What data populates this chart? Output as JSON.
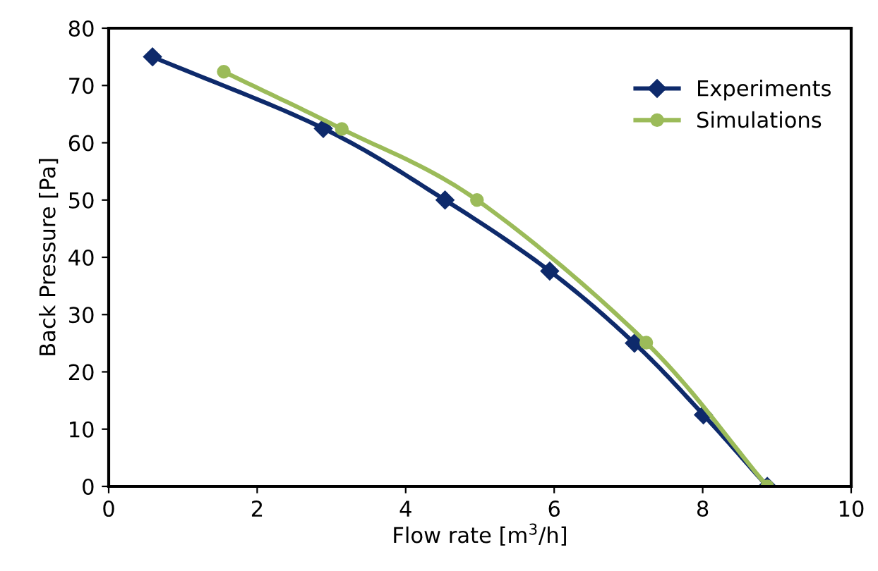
{
  "chart_data": {
    "type": "line",
    "xlabel": "Flow rate [m$^{3}$/h]",
    "ylabel": "Back Pressure [Pa]",
    "xlim": [
      0,
      10
    ],
    "xticks": [
      0,
      2,
      4,
      6,
      8,
      10
    ],
    "ylim": [
      0,
      80
    ],
    "yticks": [
      0,
      10,
      20,
      30,
      40,
      50,
      60,
      70,
      80
    ],
    "grid": false,
    "legend": "top right",
    "series": [
      {
        "name": "Experiments",
        "color": "#0e2a6b",
        "marker": "diamond",
        "x": [
          0.59,
          2.89,
          4.53,
          5.94,
          7.08,
          8.01,
          8.87
        ],
        "values": [
          75,
          62.5,
          50,
          37.6,
          25,
          12.5,
          0
        ]
      },
      {
        "name": "Simulations",
        "color": "#9bbb59",
        "marker": "circle",
        "x": [
          1.55,
          3.14,
          4.96,
          7.24,
          8.87
        ],
        "values": [
          72.4,
          62.4,
          50,
          25.1,
          0
        ]
      }
    ]
  }
}
